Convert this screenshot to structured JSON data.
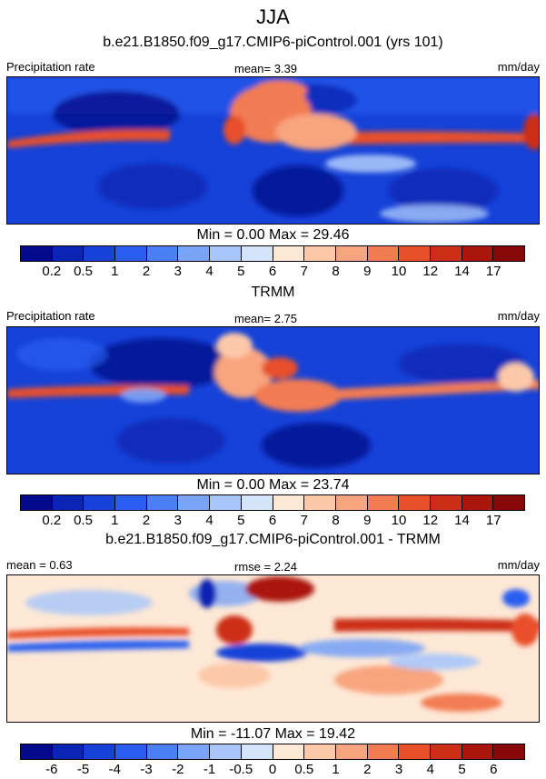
{
  "season": "JJA",
  "colors": {
    "precip": [
      "#040a8c",
      "#0a24b4",
      "#1642d8",
      "#2a5ef0",
      "#4a80f4",
      "#7aa4f6",
      "#a8c6fa",
      "#d4e4fa",
      "#fde8d6",
      "#fcc8a8",
      "#f8a47e",
      "#f27c52",
      "#e8502a",
      "#cc2e16",
      "#aa160c",
      "#860808"
    ],
    "diff": [
      "#040a8c",
      "#0a24b4",
      "#1642d8",
      "#2a5ef0",
      "#4a80f4",
      "#7aa4f6",
      "#a8c6fa",
      "#d4e4fa",
      "#fde8d6",
      "#fcc8a8",
      "#f8a47e",
      "#f27c52",
      "#e8502a",
      "#cc2e16",
      "#aa160c",
      "#860808"
    ]
  },
  "chart_data": [
    {
      "type": "heatmap",
      "title": "b.e21.B1850.f09_g17.CMIP6-piControl.001 (yrs 101)",
      "left_label": "Precipitation rate",
      "center_label": "mean=   3.39",
      "right_label": "mm/day",
      "stats": "Min =   0.00 Max =  29.46",
      "colorbar_levels": [
        "0.2",
        "0.5",
        "1",
        "2",
        "3",
        "4",
        "5",
        "6",
        "7",
        "8",
        "9",
        "10",
        "12",
        "14",
        "17"
      ]
    },
    {
      "type": "heatmap",
      "title": "TRMM",
      "left_label": "Precipitation rate",
      "center_label": "mean=   2.75",
      "right_label": "mm/day",
      "stats": "Min =   0.00 Max =  23.74",
      "colorbar_levels": [
        "0.2",
        "0.5",
        "1",
        "2",
        "3",
        "4",
        "5",
        "6",
        "7",
        "8",
        "9",
        "10",
        "12",
        "14",
        "17"
      ]
    },
    {
      "type": "heatmap",
      "title": "b.e21.B1850.f09_g17.CMIP6-piControl.001 - TRMM",
      "left_label": "mean =   0.63",
      "center_label": "rmse =   2.24",
      "right_label": "mm/day",
      "stats": "Min = -11.07 Max =  19.42",
      "colorbar_levels": [
        "-6",
        "-5",
        "-4",
        "-3",
        "-2",
        "-1",
        "-0.5",
        "0",
        "0.5",
        "1",
        "2",
        "3",
        "4",
        "5",
        "6"
      ]
    }
  ]
}
